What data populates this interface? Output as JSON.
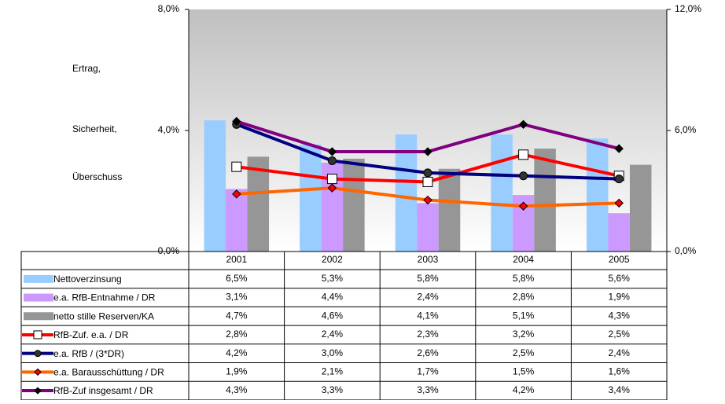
{
  "chart_data": {
    "type": "combo",
    "ylabel_lines": [
      "Ertrag,",
      "Sicherheit,",
      "Überschuss"
    ],
    "categories": [
      "2001",
      "2002",
      "2003",
      "2004",
      "2005"
    ],
    "ylim": [
      0,
      8
    ],
    "yticks": [
      {
        "value": 0,
        "label": "0,0%"
      },
      {
        "value": 4,
        "label": "4,0%"
      },
      {
        "value": 8,
        "label": "8,0%"
      }
    ],
    "y2lim": [
      0,
      12
    ],
    "y2ticks": [
      {
        "value": 0,
        "label": "0,0%"
      },
      {
        "value": 6,
        "label": "6,0%"
      },
      {
        "value": 12,
        "label": "12,0%"
      }
    ],
    "series": [
      {
        "name": "Nettoverzinsung",
        "type": "bar",
        "axis": "y2",
        "color": "#99ccff",
        "values": [
          6.5,
          5.3,
          5.8,
          5.8,
          5.6
        ],
        "value_labels": [
          "6,5%",
          "5,3%",
          "5,8%",
          "5,8%",
          "5,6%"
        ]
      },
      {
        "name": "e.a. RfB-Entnahme / DR",
        "type": "bar",
        "axis": "y2",
        "color": "#cc99ff",
        "values": [
          3.1,
          4.4,
          2.4,
          2.8,
          1.9
        ],
        "value_labels": [
          "3,1%",
          "4,4%",
          "2,4%",
          "2,8%",
          "1,9%"
        ]
      },
      {
        "name": "netto stille Reserven/KA",
        "type": "bar",
        "axis": "y2",
        "color": "#969696",
        "values": [
          4.7,
          4.6,
          4.1,
          5.1,
          4.3
        ],
        "value_labels": [
          "4,7%",
          "4,6%",
          "4,1%",
          "5,1%",
          "4,3%"
        ]
      },
      {
        "name": "RfB-Zuf. e.a. / DR",
        "type": "line",
        "color": "#ff0000",
        "marker": "square",
        "marker_color": "#ffffff",
        "values": [
          2.8,
          2.4,
          2.3,
          3.2,
          2.5
        ],
        "value_labels": [
          "2,8%",
          "2,4%",
          "2,3%",
          "3,2%",
          "2,5%"
        ]
      },
      {
        "name": "e.a. RfB / (3*DR)",
        "type": "line",
        "color": "#000080",
        "marker": "circle",
        "marker_color": "#333333",
        "values": [
          4.2,
          3.0,
          2.6,
          2.5,
          2.4
        ],
        "value_labels": [
          "4,2%",
          "3,0%",
          "2,6%",
          "2,5%",
          "2,4%"
        ]
      },
      {
        "name": "e.a. Barausschüttung / DR",
        "type": "line",
        "color": "#ff6600",
        "marker": "diamond",
        "marker_color": "#ff0000",
        "values": [
          1.9,
          2.1,
          1.7,
          1.5,
          1.6
        ],
        "value_labels": [
          "1,9%",
          "2,1%",
          "1,7%",
          "1,5%",
          "1,6%"
        ]
      },
      {
        "name": "RfB-Zuf insgesamt / DR",
        "type": "line",
        "color": "#800080",
        "marker": "diamond",
        "marker_color": "#000000",
        "values": [
          4.3,
          3.3,
          3.3,
          4.2,
          3.4
        ],
        "value_labels": [
          "4,3%",
          "3,3%",
          "3,3%",
          "4,2%",
          "3,4%"
        ]
      }
    ]
  }
}
